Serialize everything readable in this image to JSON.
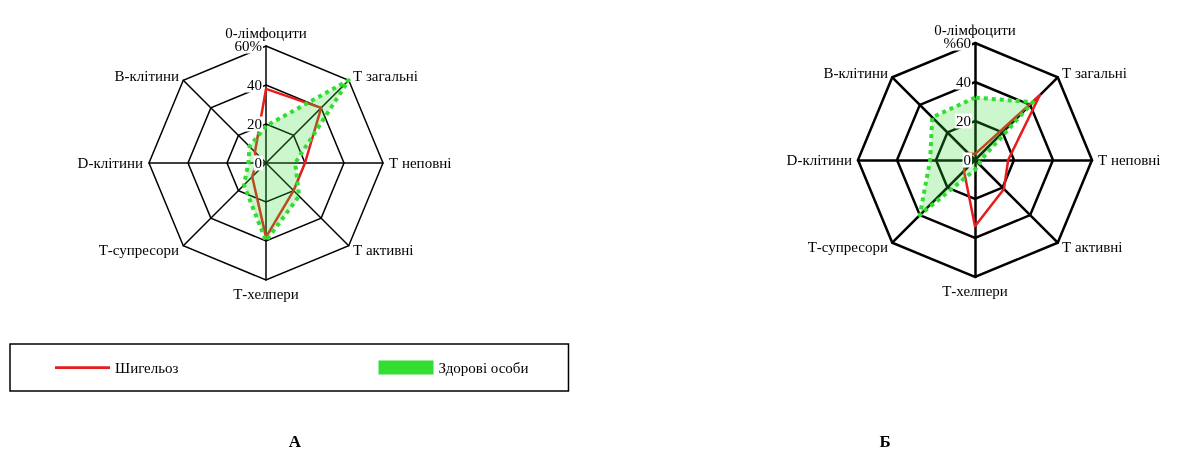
{
  "chart_data": [
    {
      "type": "radar",
      "title": "А",
      "categories": [
        "0-лімфоцити",
        "Т загальні",
        "Т неповні",
        "Т активні",
        "Т-хелпери",
        "Т-супресори",
        "D-клітини",
        "В-клітини"
      ],
      "ylim": [
        0,
        60
      ],
      "yticks": [
        0,
        20,
        40,
        {
          "value": 60,
          "label": "60%"
        }
      ],
      "legend": "bottom",
      "marker": "none",
      "series": [
        {
          "name": "Шигельоз",
          "color": "#e81c1c",
          "line_style": "solid",
          "values": [
            38,
            40,
            20,
            20,
            38,
            10,
            5,
            8
          ]
        },
        {
          "name": "Здорові особи",
          "type": "area",
          "color": "#33dd33",
          "line_style": "dotted",
          "values": [
            19,
            60,
            15,
            24,
            40,
            16,
            9,
            12
          ]
        }
      ]
    },
    {
      "type": "radar",
      "title": "Б",
      "categories": [
        "0-лімфоцити",
        "Т загальні",
        "Т неповні",
        "Т активні",
        "Т-хелпери",
        "Т-супресори",
        "D-клітини",
        "В-клітини"
      ],
      "ylim": [
        0,
        60
      ],
      "yticks": [
        0,
        20,
        40,
        {
          "value": 60,
          "label": "%60"
        }
      ],
      "legend": false,
      "marker": "none",
      "series": [
        {
          "color": "#e81c1c",
          "line_style": "solid",
          "values": [
            3,
            47,
            17,
            21,
            34,
            8,
            5,
            5
          ]
        },
        {
          "type": "area",
          "color": "#33dd33",
          "line_style": "dotted",
          "values": [
            32,
            42,
            3,
            3,
            5,
            40,
            23,
            31
          ]
        }
      ]
    }
  ]
}
